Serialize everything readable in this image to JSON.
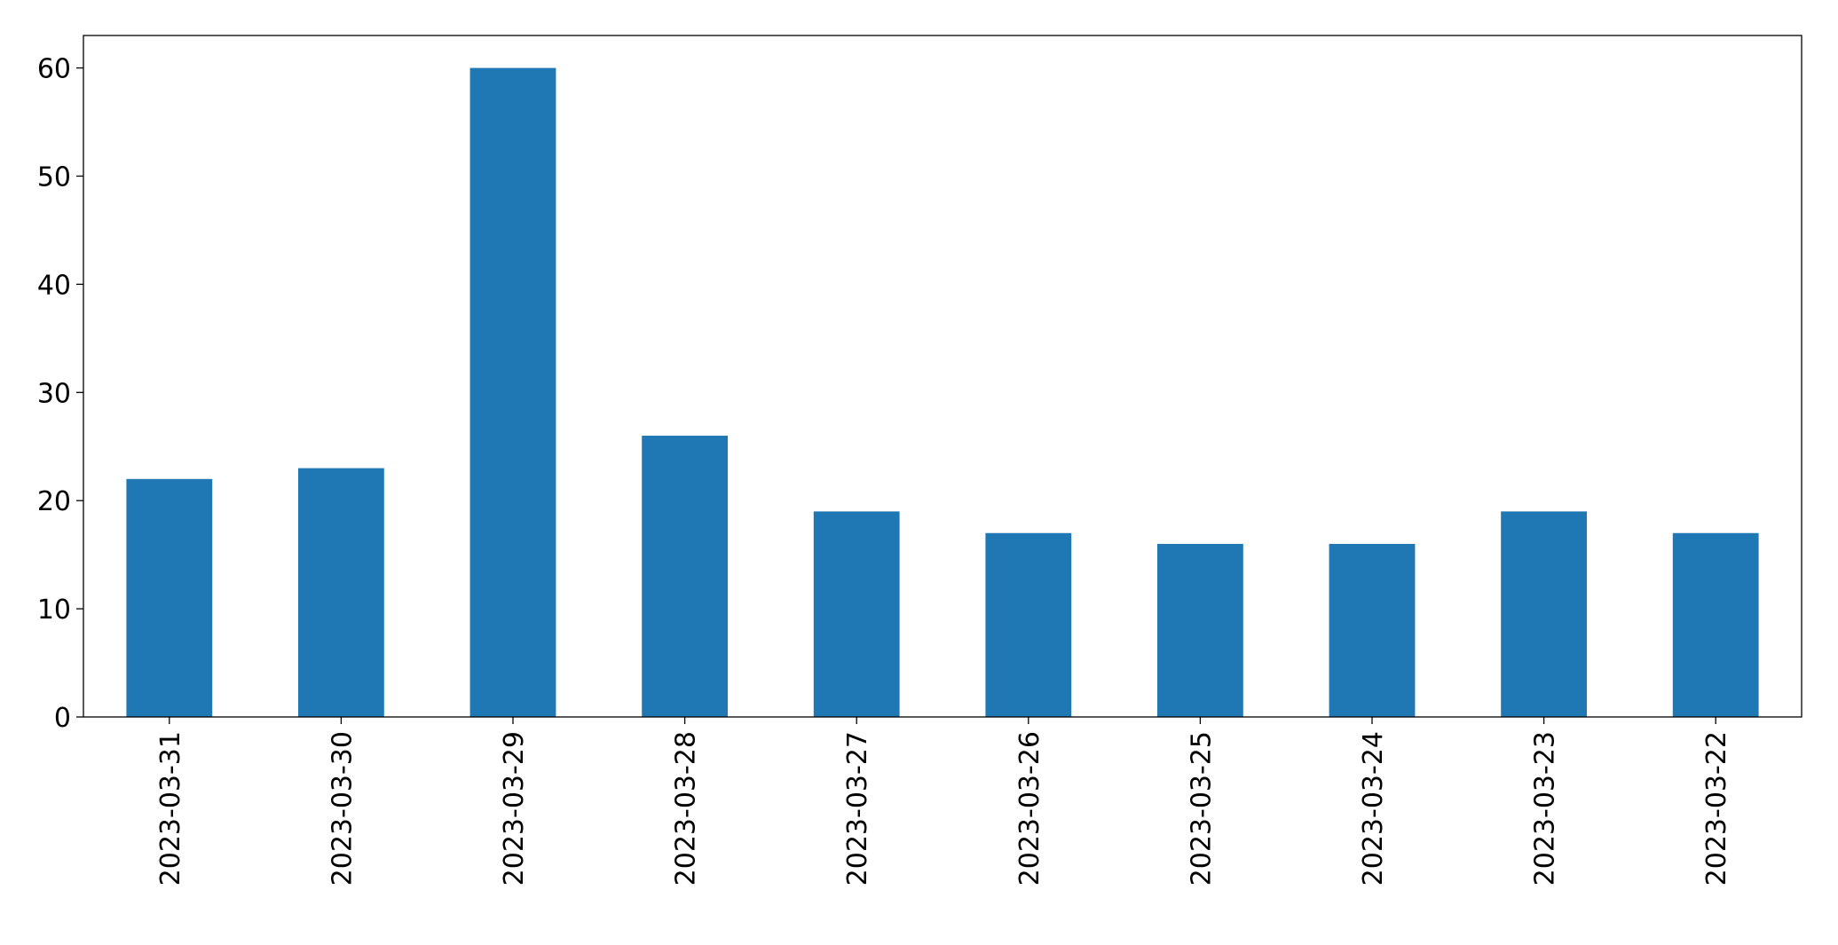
{
  "chart_data": {
    "type": "bar",
    "categories": [
      "2023-03-31",
      "2023-03-30",
      "2023-03-29",
      "2023-03-28",
      "2023-03-27",
      "2023-03-26",
      "2023-03-25",
      "2023-03-24",
      "2023-03-23",
      "2023-03-22"
    ],
    "values": [
      22,
      23,
      60,
      26,
      19,
      17,
      16,
      16,
      19,
      17
    ],
    "color": "#1f77b4",
    "ylim": [
      0,
      63
    ],
    "yticks": [
      0,
      10,
      20,
      30,
      40,
      50,
      60
    ],
    "grid": false
  }
}
